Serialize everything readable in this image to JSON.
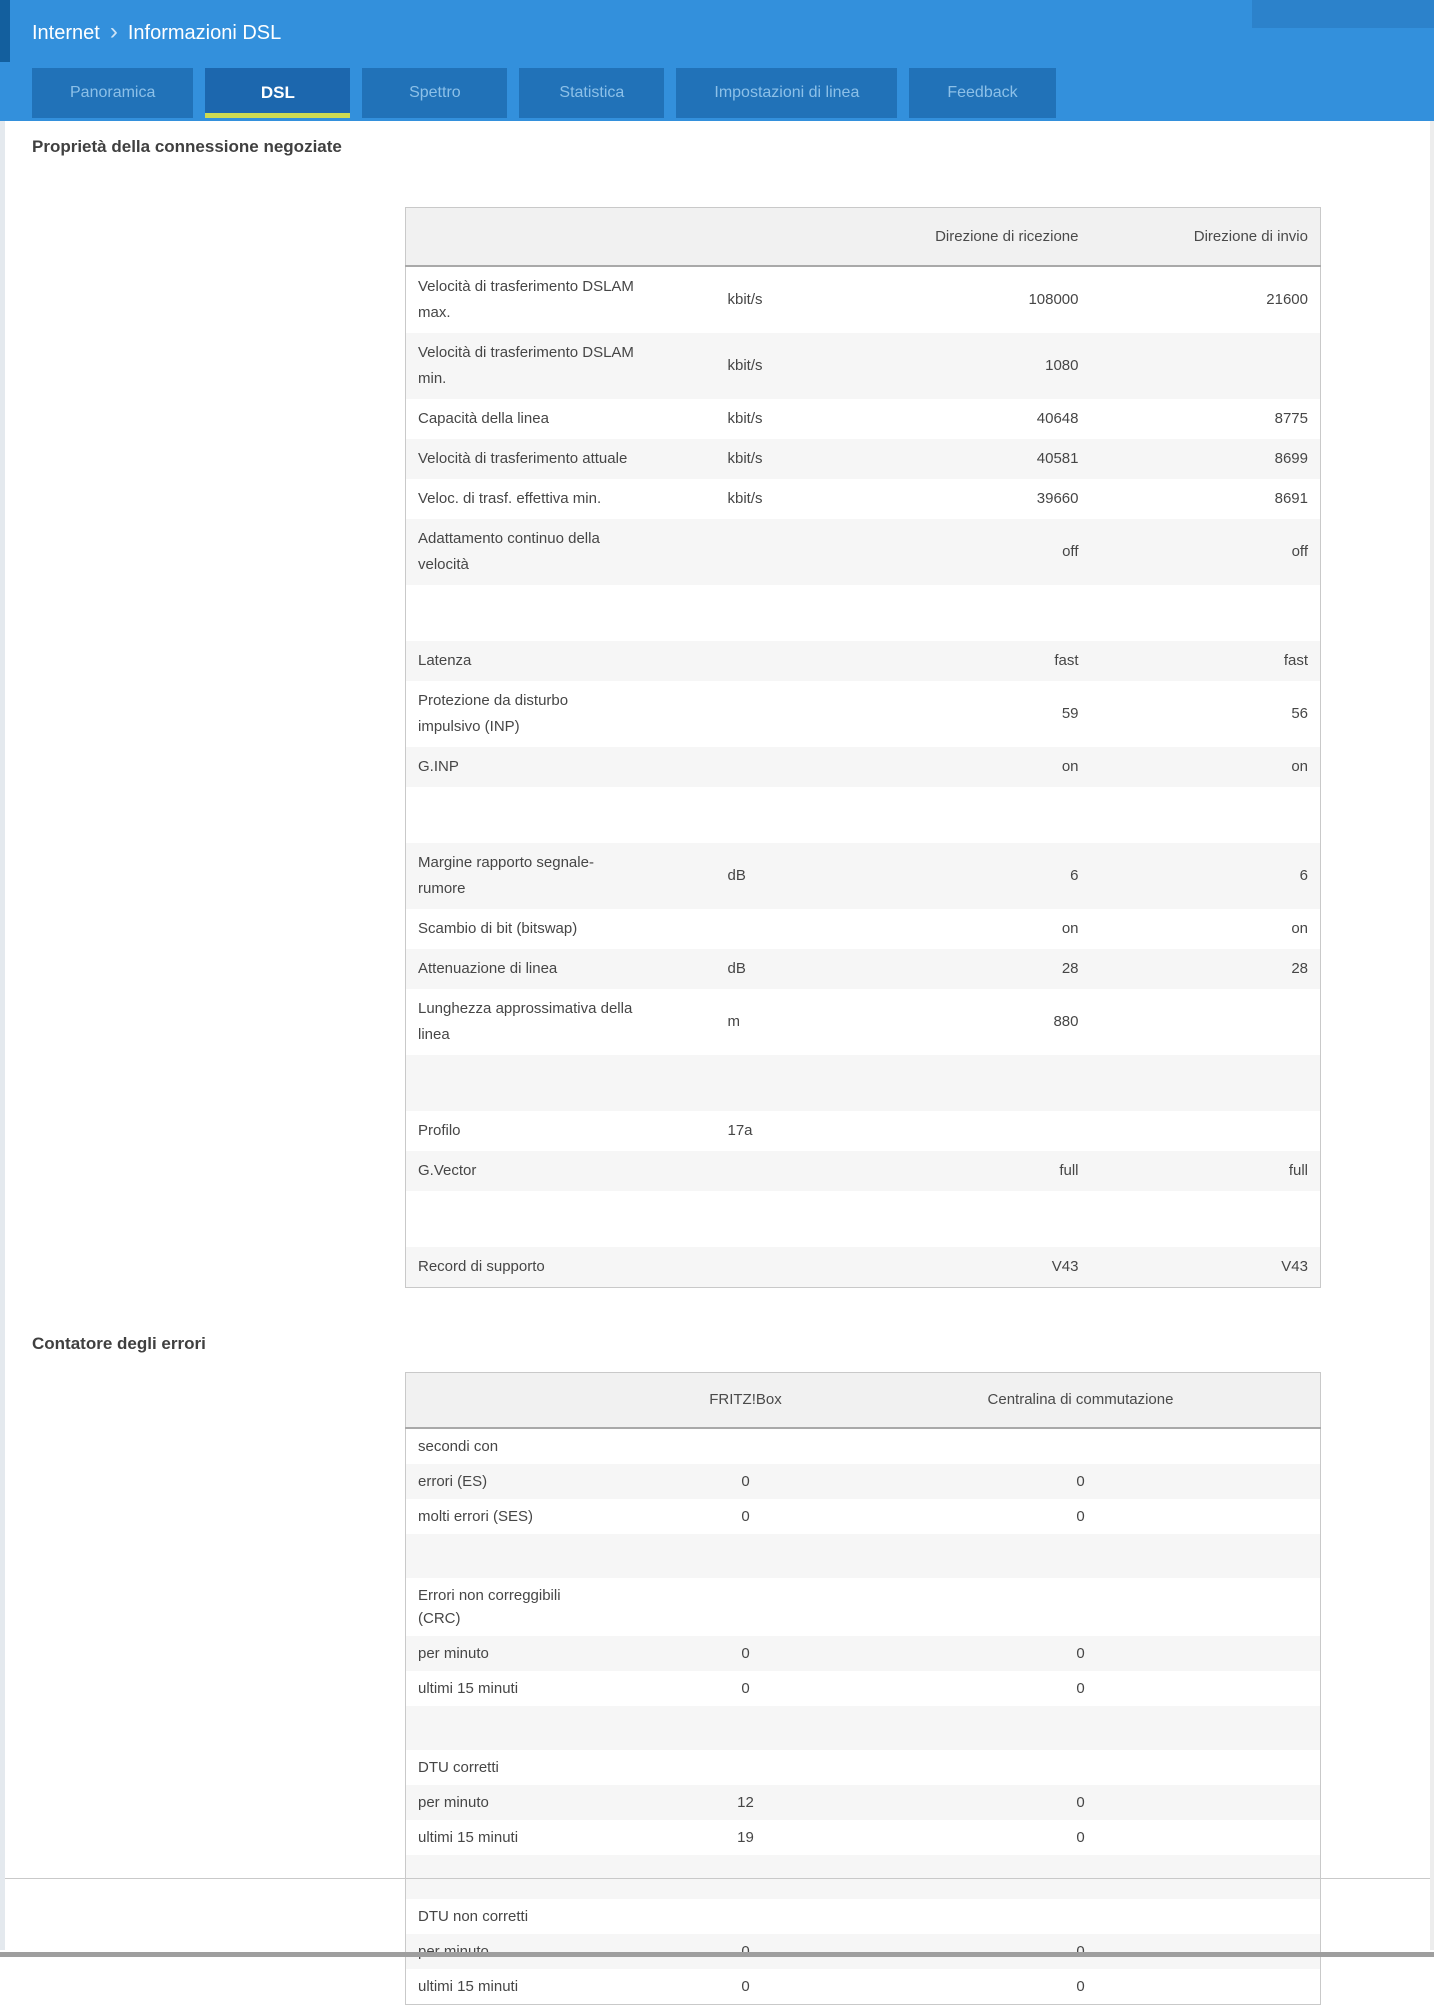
{
  "breadcrumb": {
    "section": "Internet",
    "separator": "›",
    "page": "Informazioni DSL"
  },
  "tabs": [
    {
      "label": "Panoramica",
      "active": false
    },
    {
      "label": "DSL",
      "active": true
    },
    {
      "label": "Spettro",
      "active": false
    },
    {
      "label": "Statistica",
      "active": false
    },
    {
      "label": "Impostazioni di linea",
      "active": false
    },
    {
      "label": "Feedback",
      "active": false
    }
  ],
  "colors": {
    "header_blue": "#3390dc",
    "tab_blue": "#2172b8",
    "active_tab_blue": "#1c67ae",
    "active_tab_underline": "#cdda52",
    "row_stripe": "#f6f6f6"
  },
  "sections": {
    "connection": {
      "title": "Proprietà della connessione negoziate",
      "columns": [
        "",
        "",
        "Direzione di ricezione",
        "Direzione di invio"
      ],
      "rows": [
        {
          "label": "Velocità di trasferimento DSLAM\nmax.",
          "unit": "kbit/s",
          "rx": "108000",
          "tx": "21600"
        },
        {
          "label": "Velocità di trasferimento DSLAM\nmin.",
          "unit": "kbit/s",
          "rx": "1080",
          "tx": ""
        },
        {
          "label": "Capacità della linea",
          "unit": "kbit/s",
          "rx": "40648",
          "tx": "8775"
        },
        {
          "label": "Velocità di trasferimento attuale",
          "unit": "kbit/s",
          "rx": "40581",
          "tx": "8699"
        },
        {
          "label": "Veloc. di trasf. effettiva min.",
          "unit": "kbit/s",
          "rx": "39660",
          "tx": "8691"
        },
        {
          "label": "Adattamento continuo della\nvelocità",
          "unit": "",
          "rx": "off",
          "tx": "off"
        },
        {
          "spacer": true
        },
        {
          "label": "Latenza",
          "unit": "",
          "rx": "fast",
          "tx": "fast"
        },
        {
          "label": "Protezione da disturbo\nimpulsivo (INP)",
          "unit": "",
          "rx": "59",
          "tx": "56"
        },
        {
          "label": "G.INP",
          "unit": "",
          "rx": "on",
          "tx": "on"
        },
        {
          "spacer": true
        },
        {
          "label": "Margine rapporto segnale-\nrumore",
          "unit": "dB",
          "rx": "6",
          "tx": "6"
        },
        {
          "label": "Scambio di bit (bitswap)",
          "unit": "",
          "rx": "on",
          "tx": "on"
        },
        {
          "label": "Attenuazione di linea",
          "unit": "dB",
          "rx": "28",
          "tx": "28"
        },
        {
          "label": "Lunghezza approssimativa della\nlinea",
          "unit": "m",
          "rx": "880",
          "tx": ""
        },
        {
          "spacer": true
        },
        {
          "label": "Profilo",
          "unit": "17a",
          "rx": "",
          "tx": ""
        },
        {
          "label": "G.Vector",
          "unit": "",
          "rx": "full",
          "tx": "full"
        },
        {
          "spacer": true
        },
        {
          "label": "Record di supporto",
          "unit": "",
          "rx": "V43",
          "tx": "V43"
        }
      ]
    },
    "errors": {
      "title": "Contatore degli errori",
      "columns": [
        "",
        "FRITZ!Box",
        "Centralina di commutazione",
        ""
      ],
      "rows": [
        {
          "label": "secondi con",
          "v1": "",
          "v2": ""
        },
        {
          "label": "errori (ES)",
          "v1": "0",
          "v2": "0"
        },
        {
          "label": "molti errori (SES)",
          "v1": "0",
          "v2": "0"
        },
        {
          "spacer": true
        },
        {
          "label": "Errori non correggibili\n(CRC)",
          "v1": "",
          "v2": ""
        },
        {
          "label": "per minuto",
          "v1": "0",
          "v2": "0"
        },
        {
          "label": "ultimi 15 minuti",
          "v1": "0",
          "v2": "0"
        },
        {
          "spacer": true
        },
        {
          "label": "DTU corretti",
          "v1": "",
          "v2": ""
        },
        {
          "label": "per minuto",
          "v1": "12",
          "v2": "0"
        },
        {
          "label": "ultimi 15 minuti",
          "v1": "19",
          "v2": "0"
        },
        {
          "spacer": true
        },
        {
          "label": "DTU non corretti",
          "v1": "",
          "v2": ""
        },
        {
          "label": "per minuto",
          "v1": "0",
          "v2": "0"
        },
        {
          "label": "ultimi 15 minuti",
          "v1": "0",
          "v2": "0"
        }
      ]
    }
  }
}
